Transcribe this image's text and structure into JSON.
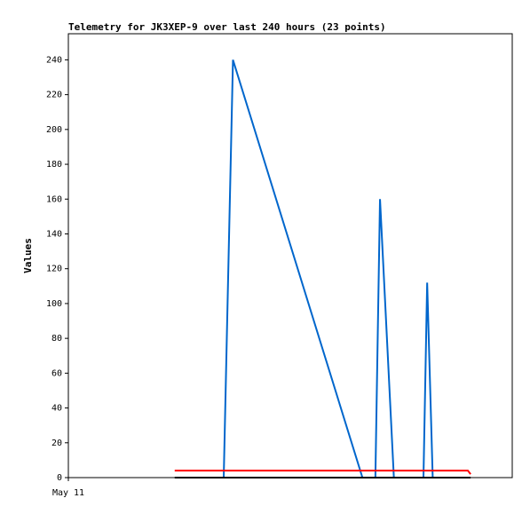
{
  "chart_data": {
    "type": "line",
    "title": "Telemetry for JK3XEP-9 over last 240 hours (23 points)",
    "y_label": "Values",
    "xlim": [
      0,
      240
    ],
    "xticks": [
      {
        "value": 0,
        "label": "May 11"
      }
    ],
    "ylim": [
      0,
      255
    ],
    "yticks": [
      0,
      20,
      40,
      60,
      80,
      100,
      120,
      140,
      160,
      180,
      200,
      220,
      240
    ],
    "series": [
      {
        "color": "#0066cc",
        "x": [
          84,
          89,
          159,
          166,
          168.5,
          176,
          192,
          194,
          197
        ],
        "values": [
          0,
          240,
          0,
          0,
          160,
          0,
          0,
          112,
          0
        ]
      },
      {
        "color": "#ff0000",
        "x": [
          57.5,
          216,
          217.5
        ],
        "values": [
          4,
          4,
          2
        ]
      },
      {
        "color": "#000000",
        "x": [
          57.5,
          217.5
        ],
        "values": [
          0,
          0
        ]
      }
    ]
  }
}
